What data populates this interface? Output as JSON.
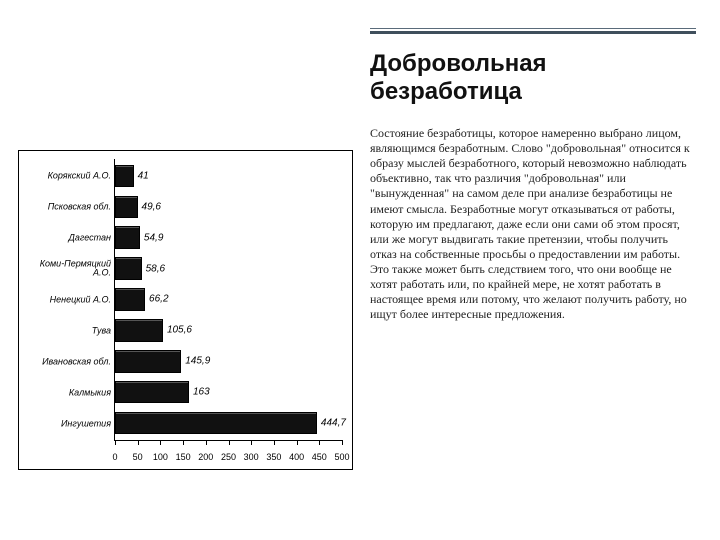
{
  "header": {
    "title": "Добровольная безработица",
    "title_fontsize": 24,
    "rule_color_thin": "#5a6b7a",
    "rule_color_thick": "#3f4f5c"
  },
  "body": {
    "text": "Состояние безработицы, которое намеренно выбрано лицом, являющимся безработным. Слово \"добровольная\" относится к образу мыслей безработного, который невозможно наблюдать объективно, так что различия \"добровольная\" или \"вынужденная\" на самом деле при анализе безработицы не имеют смысла. Безработные могут отказываться от работы, которую им предлагают, даже если они сами об этом просят, или же могут выдвигать такие претензии, чтобы получить отказ на собственные просьбы о предоставлении им работы. Это также может быть следствием того, что они вообще не хотят работать или, по крайней мере, не хотят работать в настоящее время или потому, что желают получить работу, но ищут более интересные предложения.",
    "fontsize": 12
  },
  "chart": {
    "type": "bar-horizontal",
    "categories": [
      "Корякский А.О.",
      "Псковская обл.",
      "Дагестан",
      "Коми-Пермяцкий А.О.",
      "Ненецкий А.О.",
      "Тува",
      "Ивановская обл.",
      "Калмыкия",
      "Ингушетия"
    ],
    "values": [
      41,
      49.6,
      54.9,
      58.6,
      66.2,
      105.6,
      145.9,
      163,
      444.7
    ],
    "value_labels": [
      "41",
      "49,6",
      "54,9",
      "58,6",
      "66,2",
      "105,6",
      "145,9",
      "163",
      "444,7"
    ],
    "xmin": 0,
    "xmax": 500,
    "xtick_step": 50,
    "xticks": [
      0,
      50,
      100,
      150,
      200,
      250,
      300,
      350,
      400,
      450,
      500
    ],
    "bar_color": "#111111",
    "background_color": "#ffffff",
    "axis_color": "#000000",
    "border_color": "#000000",
    "category_fontsize": 9,
    "value_fontsize": 10,
    "xtick_fontsize": 9,
    "row_height_pct": 8.0,
    "row_gap_pct": 3.0,
    "top_pad_pct": 2.0
  }
}
